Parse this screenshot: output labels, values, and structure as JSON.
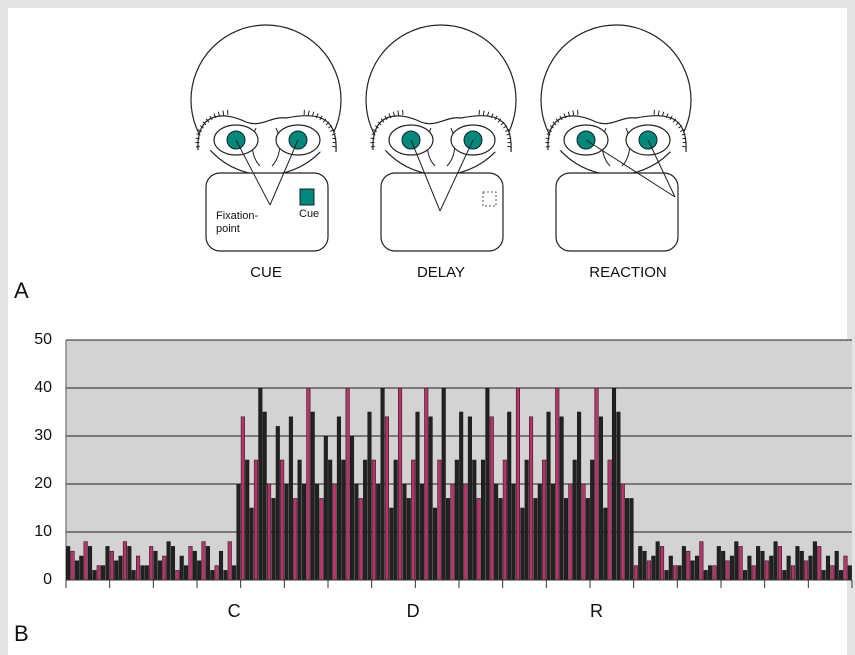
{
  "figure": {
    "panel_a": {
      "label": "A",
      "fixation_line1": "Fixation-",
      "fixation_line2": "point",
      "cue_mark": "Cue",
      "stages": [
        "CUE",
        "DELAY",
        "REACTION"
      ]
    },
    "panel_b": {
      "label": "B"
    }
  },
  "chart_data": {
    "type": "bar",
    "categories": [
      null,
      null,
      null,
      null,
      null,
      null,
      null,
      null,
      null,
      null,
      null,
      null,
      null,
      null,
      null,
      null,
      null,
      null,
      null,
      null,
      null,
      null,
      null,
      null,
      null,
      null,
      null,
      null,
      null,
      null,
      null,
      null,
      null,
      null,
      null,
      null,
      null,
      null,
      "C",
      null,
      null,
      null,
      null,
      null,
      null,
      null,
      null,
      null,
      null,
      null,
      null,
      null,
      null,
      null,
      null,
      null,
      null,
      null,
      null,
      null,
      null,
      null,
      null,
      null,
      null,
      null,
      null,
      null,
      null,
      null,
      null,
      null,
      null,
      null,
      null,
      null,
      null,
      null,
      null,
      "D",
      null,
      null,
      null,
      null,
      null,
      null,
      null,
      null,
      null,
      null,
      null,
      null,
      null,
      null,
      null,
      null,
      null,
      null,
      null,
      null,
      null,
      null,
      null,
      null,
      null,
      null,
      null,
      null,
      null,
      null,
      null,
      null,
      null,
      null,
      null,
      null,
      null,
      null,
      null,
      null,
      null,
      "R",
      null,
      null,
      null,
      null,
      null,
      null,
      null,
      null,
      null,
      null,
      null,
      null,
      null,
      null,
      null,
      null,
      null,
      null,
      null,
      null,
      null,
      null,
      null,
      null,
      null,
      null,
      null,
      null,
      null,
      null,
      null,
      null,
      null,
      null,
      null,
      null,
      null,
      null,
      null,
      null,
      null,
      null,
      null,
      null,
      null,
      null,
      null,
      null,
      null,
      null,
      null,
      null,
      null,
      null,
      null,
      null,
      null,
      null
    ],
    "values": [
      7,
      6,
      4,
      5,
      8,
      7,
      2,
      3,
      3,
      7,
      6,
      4,
      5,
      8,
      7,
      2,
      5,
      3,
      3,
      7,
      6,
      4,
      5,
      8,
      7,
      2,
      5,
      3,
      7,
      6,
      4,
      8,
      7,
      2,
      3,
      6,
      2,
      8,
      3,
      20,
      34,
      25,
      15,
      25,
      40,
      35,
      20,
      17,
      32,
      25,
      20,
      34,
      17,
      25,
      20,
      40,
      35,
      20,
      17,
      30,
      25,
      20,
      34,
      25,
      40,
      30,
      20,
      17,
      25,
      35,
      25,
      20,
      40,
      34,
      15,
      25,
      40,
      20,
      17,
      25,
      35,
      20,
      40,
      34,
      15,
      25,
      40,
      17,
      20,
      25,
      35,
      20,
      34,
      25,
      17,
      25,
      40,
      34,
      20,
      17,
      25,
      35,
      20,
      40,
      15,
      25,
      34,
      17,
      20,
      25,
      35,
      20,
      40,
      34,
      17,
      20,
      25,
      35,
      20,
      17,
      25,
      40,
      34,
      15,
      25,
      40,
      35,
      20,
      17,
      17,
      3,
      7,
      6,
      4,
      5,
      8,
      7,
      2,
      5,
      3,
      3,
      7,
      6,
      4,
      5,
      8,
      2,
      3,
      3,
      7,
      6,
      4,
      5,
      8,
      7,
      2,
      5,
      3,
      7,
      6,
      4,
      5,
      8,
      7,
      2,
      5,
      3,
      7,
      6,
      4,
      5,
      8,
      7,
      2,
      5,
      3,
      6,
      2,
      5,
      3
    ],
    "colors": [
      "#222",
      "#b8336a",
      "#222",
      "#222",
      "#b8336a",
      "#222",
      "#222",
      "#b8336a",
      "#222",
      "#222",
      "#b8336a",
      "#222",
      "#222",
      "#b8336a",
      "#222",
      "#222",
      "#b8336a",
      "#222",
      "#222",
      "#b8336a",
      "#222",
      "#222",
      "#b8336a",
      "#222",
      "#222",
      "#b8336a",
      "#222",
      "#222",
      "#b8336a",
      "#222",
      "#222",
      "#b8336a",
      "#222",
      "#222",
      "#b8336a",
      "#222",
      "#222",
      "#b8336a",
      "#222",
      "#222",
      "#b8336a",
      "#222",
      "#222",
      "#b8336a",
      "#222",
      "#222",
      "#b8336a",
      "#222",
      "#222",
      "#b8336a",
      "#222",
      "#222",
      "#b8336a",
      "#222",
      "#222",
      "#b8336a",
      "#222",
      "#222",
      "#b8336a",
      "#222",
      "#222",
      "#b8336a",
      "#222",
      "#222",
      "#b8336a",
      "#222",
      "#222",
      "#b8336a",
      "#222",
      "#222",
      "#b8336a",
      "#222",
      "#222",
      "#b8336a",
      "#222",
      "#222",
      "#b8336a",
      "#222",
      "#222",
      "#b8336a",
      "#222",
      "#222",
      "#b8336a",
      "#222",
      "#222",
      "#b8336a",
      "#222",
      "#222",
      "#b8336a",
      "#222",
      "#222",
      "#b8336a",
      "#222",
      "#222",
      "#b8336a",
      "#222",
      "#222",
      "#b8336a",
      "#222",
      "#222",
      "#b8336a",
      "#222",
      "#222",
      "#b8336a",
      "#222",
      "#222",
      "#b8336a",
      "#222",
      "#222",
      "#b8336a",
      "#222",
      "#222",
      "#b8336a",
      "#222",
      "#222",
      "#b8336a",
      "#222",
      "#222",
      "#b8336a",
      "#222",
      "#222",
      "#b8336a",
      "#222",
      "#222",
      "#b8336a",
      "#222",
      "#222",
      "#b8336a",
      "#222",
      "#222",
      "#b8336a",
      "#222",
      "#222",
      "#b8336a",
      "#222",
      "#222",
      "#b8336a",
      "#222",
      "#222",
      "#b8336a",
      "#222",
      "#222",
      "#b8336a",
      "#222",
      "#222",
      "#b8336a",
      "#222",
      "#222",
      "#b8336a",
      "#222",
      "#222",
      "#b8336a",
      "#222",
      "#222",
      "#b8336a",
      "#222",
      "#222",
      "#b8336a",
      "#222",
      "#222",
      "#b8336a",
      "#222",
      "#222",
      "#b8336a",
      "#222",
      "#222",
      "#b8336a",
      "#222",
      "#222",
      "#b8336a",
      "#222",
      "#222",
      "#b8336a",
      "#222",
      "#222",
      "#b8336a",
      "#222",
      "#222",
      "#b8336a",
      "#222"
    ],
    "ylim": [
      0,
      50
    ],
    "yticks": [
      0,
      10,
      20,
      30,
      40,
      50
    ],
    "grid": true,
    "plot_background": "#d3d3d3"
  }
}
